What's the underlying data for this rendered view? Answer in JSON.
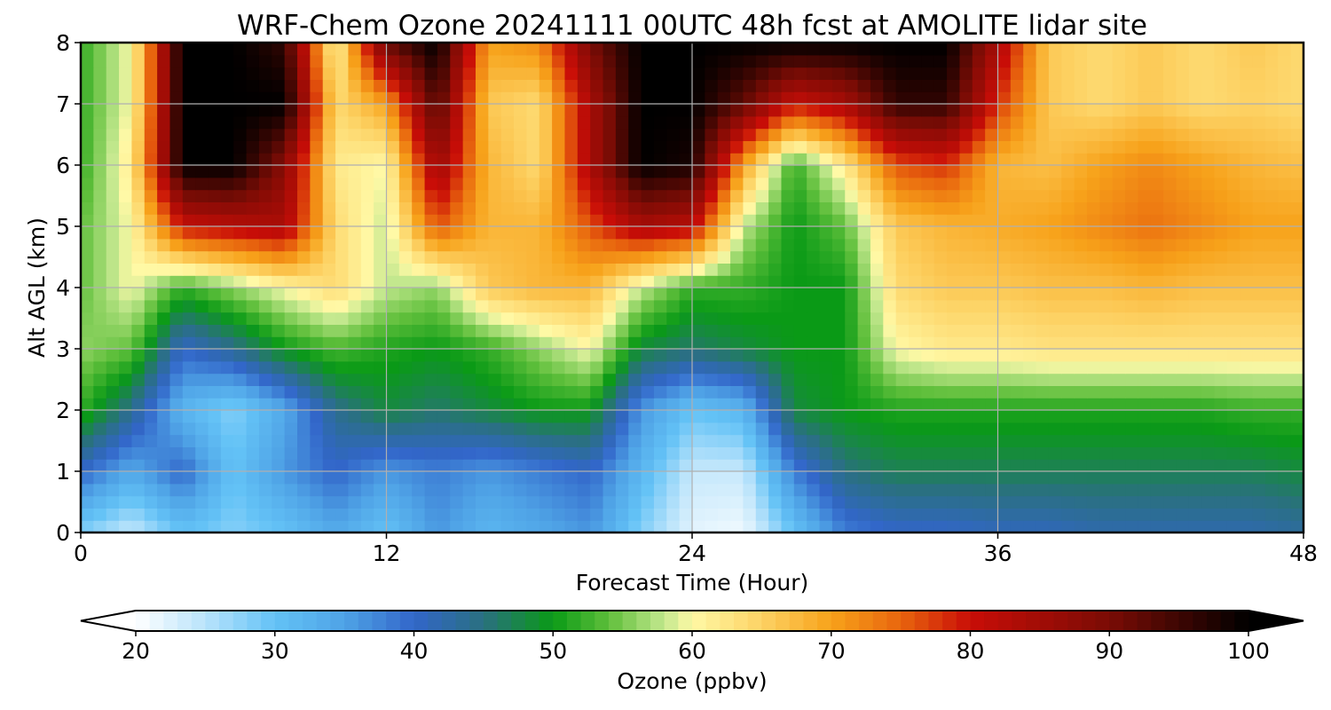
{
  "chart_data": {
    "type": "heatmap",
    "subtype": "filled-contour time-height cross-section",
    "title": "WRF-Chem Ozone  20241111 00UTC 48h fcst at AMOLITE lidar site",
    "xlabel": "Forecast Time (Hour)",
    "ylabel": "Alt AGL (km)",
    "xlim": [
      0,
      48
    ],
    "ylim": [
      0,
      8
    ],
    "x_ticks": [
      0,
      12,
      24,
      36,
      48
    ],
    "y_ticks": [
      0,
      1,
      2,
      3,
      4,
      5,
      6,
      7,
      8
    ],
    "grid": true,
    "x": [
      0,
      2,
      4,
      6,
      8,
      10,
      12,
      14,
      16,
      18,
      20,
      22,
      24,
      26,
      28,
      30,
      32,
      34,
      36,
      38,
      40,
      42,
      44,
      46,
      48
    ],
    "y": [
      0,
      1,
      2,
      3,
      4,
      5,
      6,
      7,
      8
    ],
    "z": [
      [
        28,
        24,
        30,
        28,
        30,
        34,
        30,
        36,
        32,
        34,
        36,
        28,
        22,
        21,
        30,
        38,
        40,
        40,
        41,
        41,
        42,
        42,
        42,
        42,
        43
      ],
      [
        40,
        34,
        40,
        30,
        36,
        40,
        36,
        38,
        36,
        38,
        40,
        32,
        24,
        24,
        38,
        45,
        47,
        47,
        47,
        47,
        47,
        47,
        47,
        47,
        48
      ],
      [
        52,
        44,
        32,
        28,
        34,
        44,
        48,
        46,
        48,
        50,
        50,
        36,
        30,
        32,
        48,
        50,
        51,
        51,
        51,
        51,
        51,
        51,
        51,
        52,
        52
      ],
      [
        56,
        54,
        40,
        44,
        50,
        53,
        51,
        50,
        52,
        56,
        60,
        48,
        46,
        48,
        50,
        50,
        60,
        62,
        62,
        63,
        63,
        63,
        63,
        63,
        63
      ],
      [
        54,
        60,
        52,
        56,
        60,
        64,
        58,
        56,
        66,
        68,
        68,
        58,
        52,
        52,
        50,
        50,
        64,
        66,
        66,
        67,
        67,
        68,
        67,
        67,
        67
      ],
      [
        54,
        60,
        80,
        82,
        84,
        64,
        58,
        76,
        68,
        68,
        76,
        84,
        82,
        58,
        50,
        54,
        66,
        68,
        69,
        70,
        72,
        74,
        72,
        70,
        70
      ],
      [
        52,
        62,
        100,
        100,
        88,
        62,
        60,
        86,
        68,
        64,
        84,
        100,
        98,
        70,
        52,
        62,
        76,
        78,
        68,
        67,
        70,
        72,
        70,
        68,
        67
      ],
      [
        52,
        60,
        100,
        100,
        100,
        64,
        70,
        94,
        66,
        64,
        84,
        100,
        100,
        92,
        80,
        84,
        96,
        96,
        78,
        66,
        64,
        66,
        64,
        65,
        64
      ],
      [
        52,
        60,
        100,
        100,
        96,
        60,
        92,
        100,
        70,
        72,
        90,
        100,
        100,
        100,
        100,
        100,
        100,
        100,
        84,
        66,
        64,
        66,
        64,
        66,
        64
      ]
    ],
    "colorbar": {
      "label": "Ozone  (ppbv)",
      "min": 20,
      "max": 100,
      "ticks": [
        20,
        30,
        40,
        50,
        60,
        70,
        80,
        90,
        100
      ],
      "extend": "both",
      "orientation": "horizontal",
      "stops": [
        {
          "v": 20,
          "color": "#ffffff"
        },
        {
          "v": 25,
          "color": "#b9e3fb"
        },
        {
          "v": 30,
          "color": "#63c2f6"
        },
        {
          "v": 35,
          "color": "#4fa3e6"
        },
        {
          "v": 40,
          "color": "#3266c9"
        },
        {
          "v": 45,
          "color": "#2a7080"
        },
        {
          "v": 50,
          "color": "#0a9a16"
        },
        {
          "v": 54,
          "color": "#5fbf3b"
        },
        {
          "v": 58,
          "color": "#c3e88e"
        },
        {
          "v": 60,
          "color": "#fff9a6"
        },
        {
          "v": 65,
          "color": "#fdd264"
        },
        {
          "v": 70,
          "color": "#f7a21a"
        },
        {
          "v": 75,
          "color": "#e8650e"
        },
        {
          "v": 80,
          "color": "#c90d07"
        },
        {
          "v": 90,
          "color": "#7a0c05"
        },
        {
          "v": 100,
          "color": "#000000"
        }
      ]
    }
  }
}
